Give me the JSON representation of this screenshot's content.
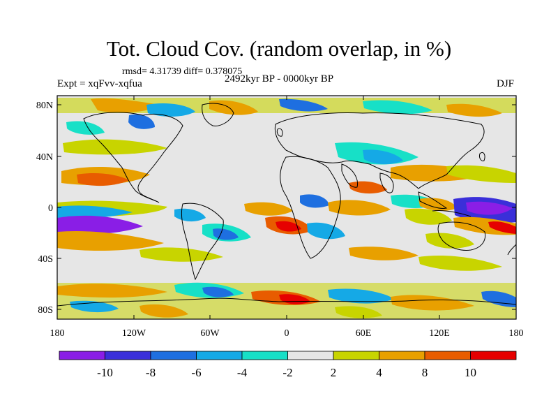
{
  "title": "Tot. Cloud Cov. (random overlap, in %)",
  "stats": "rmsd= 4.31739 diff= 0.378075",
  "experiment": "Expt = xqFvv-xqfua",
  "period": "2492kyr BP - 0000kyr BP",
  "season": "DJF",
  "lat_ticks": [
    "80N",
    "40N",
    "0",
    "40S",
    "80S"
  ],
  "lon_ticks": [
    "180",
    "120W",
    "60W",
    "0",
    "60E",
    "120E",
    "180"
  ],
  "colorbar": {
    "labels": [
      "-10",
      "-8",
      "-6",
      "-4",
      "-2",
      "2",
      "4",
      "8",
      "10"
    ],
    "colors": [
      "#8a1ee6",
      "#3a2fd9",
      "#1e6fe0",
      "#15a9e6",
      "#17e0c7",
      "#e6e6e6",
      "#c8d400",
      "#e8a000",
      "#e85c00",
      "#e60000"
    ]
  }
}
